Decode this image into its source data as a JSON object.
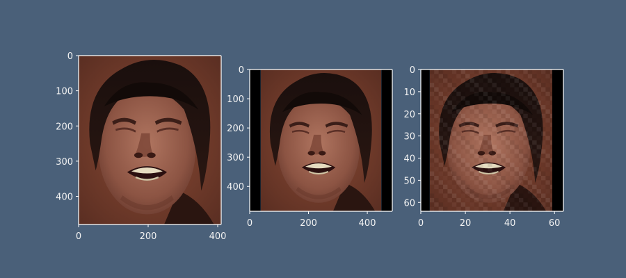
{
  "figure": {
    "background": "#4a6079",
    "tick_color": "#f2f2f2",
    "image_subject": "photo of a grimacing face with dark hair"
  },
  "chart_data": [
    {
      "type": "image",
      "xlim": [
        0,
        410
      ],
      "ylim": [
        480,
        0
      ],
      "image_width": 410,
      "image_height": 480,
      "pixelation": 0,
      "black_bars": {
        "left": 0,
        "right": 0
      },
      "xticks": [
        0,
        200,
        400
      ],
      "yticks": [
        0,
        100,
        200,
        300,
        400
      ],
      "title": "",
      "xlabel": "",
      "ylabel": ""
    },
    {
      "type": "image",
      "xlim": [
        0,
        485
      ],
      "ylim": [
        485,
        0
      ],
      "image_width": 485,
      "image_height": 485,
      "pixelation": 0,
      "black_bars": {
        "left": 37,
        "right": 37
      },
      "xticks": [
        0,
        200,
        400
      ],
      "yticks": [
        0,
        100,
        200,
        300,
        400
      ],
      "title": "",
      "xlabel": "",
      "ylabel": ""
    },
    {
      "type": "image",
      "xlim": [
        0,
        64
      ],
      "ylim": [
        64,
        0
      ],
      "image_width": 64,
      "image_height": 64,
      "pixelation": 64,
      "black_bars": {
        "left": 4,
        "right": 5
      },
      "xticks": [
        0,
        20,
        40,
        60
      ],
      "yticks": [
        0,
        10,
        20,
        30,
        40,
        50,
        60
      ],
      "title": "",
      "xlabel": "",
      "ylabel": ""
    }
  ]
}
